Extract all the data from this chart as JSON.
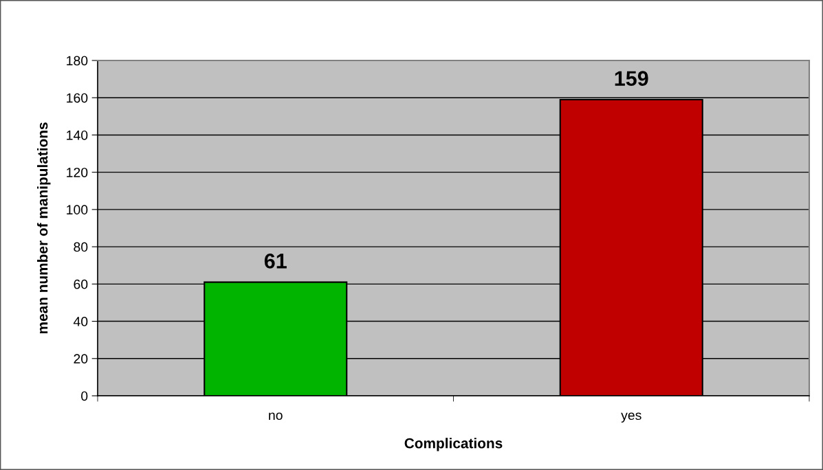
{
  "chart_data": {
    "type": "bar",
    "xlabel": "Complications",
    "ylabel": "mean number of manipulations",
    "categories": [
      "no",
      "yes"
    ],
    "values": [
      61,
      159
    ],
    "colors": [
      "#00b400",
      "#c00000"
    ],
    "ylim": [
      0,
      180
    ],
    "yticks": [
      0,
      20,
      40,
      60,
      80,
      100,
      120,
      140,
      160,
      180
    ],
    "grid": "y",
    "data_labels": true
  }
}
